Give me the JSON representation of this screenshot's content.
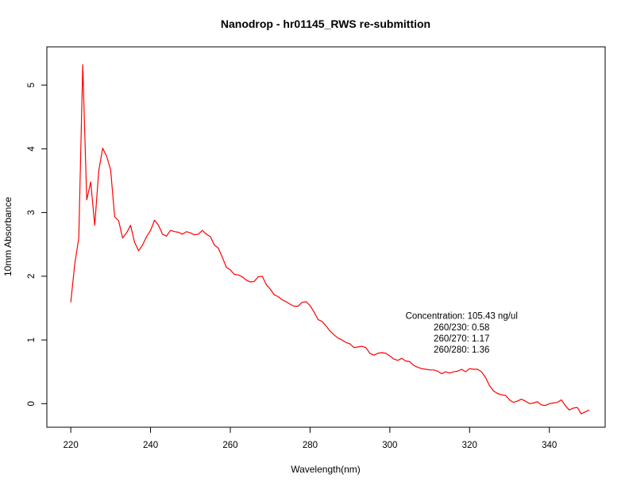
{
  "chart_data": {
    "type": "line",
    "title": "Nanodrop - hr01145_RWS re-submittion",
    "xlabel": "Wavelength(nm)",
    "ylabel": "10mm Absorbance",
    "xlim": [
      214,
      354
    ],
    "ylim": [
      -0.37,
      5.6
    ],
    "xticks": [
      220,
      240,
      260,
      280,
      300,
      320,
      340
    ],
    "yticks": [
      0,
      1,
      2,
      3,
      4,
      5
    ],
    "line_color": "#ff0000",
    "grid": false,
    "annotations": [
      "Concentration: 105.43 ng/ul",
      "260/230: 0.58",
      "260/270: 1.17",
      "260/280: 1.36"
    ],
    "series": [
      {
        "x": [
          220,
          221,
          222,
          223,
          224,
          225,
          226,
          227,
          228,
          229,
          230,
          231,
          232,
          233,
          234,
          235,
          236,
          237,
          238,
          239,
          240,
          241,
          242,
          243,
          244,
          245,
          246,
          247,
          248,
          249,
          250,
          251,
          252,
          253,
          254,
          255,
          256,
          257,
          258,
          259,
          260,
          261,
          262,
          263,
          264,
          265,
          266,
          267,
          268,
          269,
          270,
          271,
          272,
          273,
          274,
          275,
          276,
          277,
          278,
          279,
          280,
          281,
          282,
          283,
          284,
          285,
          286,
          287,
          288,
          289,
          290,
          291,
          292,
          293,
          294,
          295,
          296,
          297,
          298,
          299,
          300,
          301,
          302,
          303,
          304,
          305,
          306,
          307,
          308,
          309,
          310,
          311,
          312,
          313,
          314,
          315,
          316,
          317,
          318,
          319,
          320,
          321,
          322,
          323,
          324,
          325,
          326,
          327,
          328,
          329,
          330,
          331,
          332,
          333,
          334,
          335,
          336,
          337,
          338,
          339,
          340,
          341,
          342,
          343,
          344,
          345,
          346,
          347,
          348,
          349,
          350
        ],
        "values": [
          1.59,
          2.2,
          2.6,
          5.32,
          3.2,
          3.48,
          2.8,
          3.65,
          4.01,
          3.88,
          3.67,
          2.93,
          2.87,
          2.6,
          2.68,
          2.8,
          2.53,
          2.4,
          2.49,
          2.62,
          2.72,
          2.88,
          2.8,
          2.66,
          2.63,
          2.72,
          2.7,
          2.69,
          2.66,
          2.7,
          2.68,
          2.65,
          2.66,
          2.72,
          2.66,
          2.62,
          2.49,
          2.44,
          2.3,
          2.14,
          2.1,
          2.03,
          2.02,
          1.99,
          1.94,
          1.91,
          1.92,
          1.99,
          2.0,
          1.87,
          1.8,
          1.71,
          1.68,
          1.63,
          1.6,
          1.56,
          1.53,
          1.53,
          1.59,
          1.6,
          1.54,
          1.44,
          1.32,
          1.29,
          1.22,
          1.14,
          1.08,
          1.03,
          1.0,
          0.96,
          0.94,
          0.88,
          0.89,
          0.9,
          0.88,
          0.79,
          0.76,
          0.79,
          0.8,
          0.79,
          0.75,
          0.7,
          0.68,
          0.71,
          0.67,
          0.66,
          0.6,
          0.57,
          0.55,
          0.54,
          0.53,
          0.53,
          0.51,
          0.47,
          0.5,
          0.48,
          0.5,
          0.51,
          0.54,
          0.5,
          0.55,
          0.54,
          0.54,
          0.5,
          0.41,
          0.28,
          0.2,
          0.16,
          0.14,
          0.13,
          0.06,
          0.02,
          0.04,
          0.07,
          0.04,
          0.0,
          0.01,
          0.03,
          -0.02,
          -0.03,
          0.0,
          0.01,
          0.02,
          0.06,
          -0.03,
          -0.1,
          -0.07,
          -0.06,
          -0.16,
          -0.13,
          -0.1
        ]
      }
    ]
  }
}
